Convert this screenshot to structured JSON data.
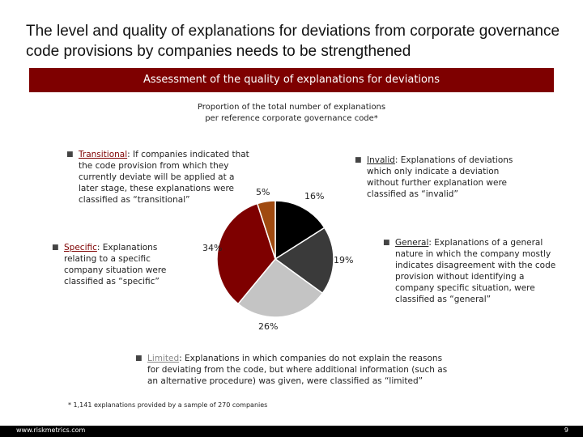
{
  "title": "The level and quality of explanations for deviations from corporate governance code provisions by companies needs to be strengthened",
  "banner": "Assessment of the quality of explanations for deviations",
  "subtitle_line1": "Proportion of the total number of explanations",
  "subtitle_line2": "per reference corporate governance code*",
  "notes": {
    "transitional": {
      "term": "Transitional",
      "text": ": If companies indicated that the code provision from which they currently deviate will be applied at a later stage, these explanations were classified as “transitional”"
    },
    "invalid": {
      "term": "Invalid",
      "text": ": Explanations of deviations which only indicate a deviation without further explanation were classified as “invalid”"
    },
    "specific": {
      "term": "Specific",
      "text": ": Explanations relating to a specific company situation were classified as “specific”"
    },
    "general": {
      "term": "General",
      "text": ": Explanations of a general nature in which the company mostly indicates disagreement with the code provision without identifying a company specific situation, were classified as “general”"
    },
    "limited": {
      "term": "Limited",
      "text": ": Explanations in which companies do not explain the reasons for deviating from the code, but where additional information (such as an alternative procedure) was given, were classified as “limited”"
    }
  },
  "footnote": "* 1,141 explanations provided by a sample of 270 companies",
  "footer": {
    "url": "www.riskmetrics.com",
    "page": "9"
  },
  "chart_data": {
    "type": "pie",
    "title": "",
    "slices": [
      {
        "category": "Invalid",
        "label": "16%",
        "value": 16,
        "color": "#000000"
      },
      {
        "category": "General",
        "label": "19%",
        "value": 19,
        "color": "#3a3a3a"
      },
      {
        "category": "Limited",
        "label": "26%",
        "value": 26,
        "color": "#c4c4c4"
      },
      {
        "category": "Specific",
        "label": "34%",
        "value": 34,
        "color": "#7e0000"
      },
      {
        "category": "Transitional",
        "label": "5%",
        "value": 5,
        "color": "#a04a10"
      }
    ]
  }
}
